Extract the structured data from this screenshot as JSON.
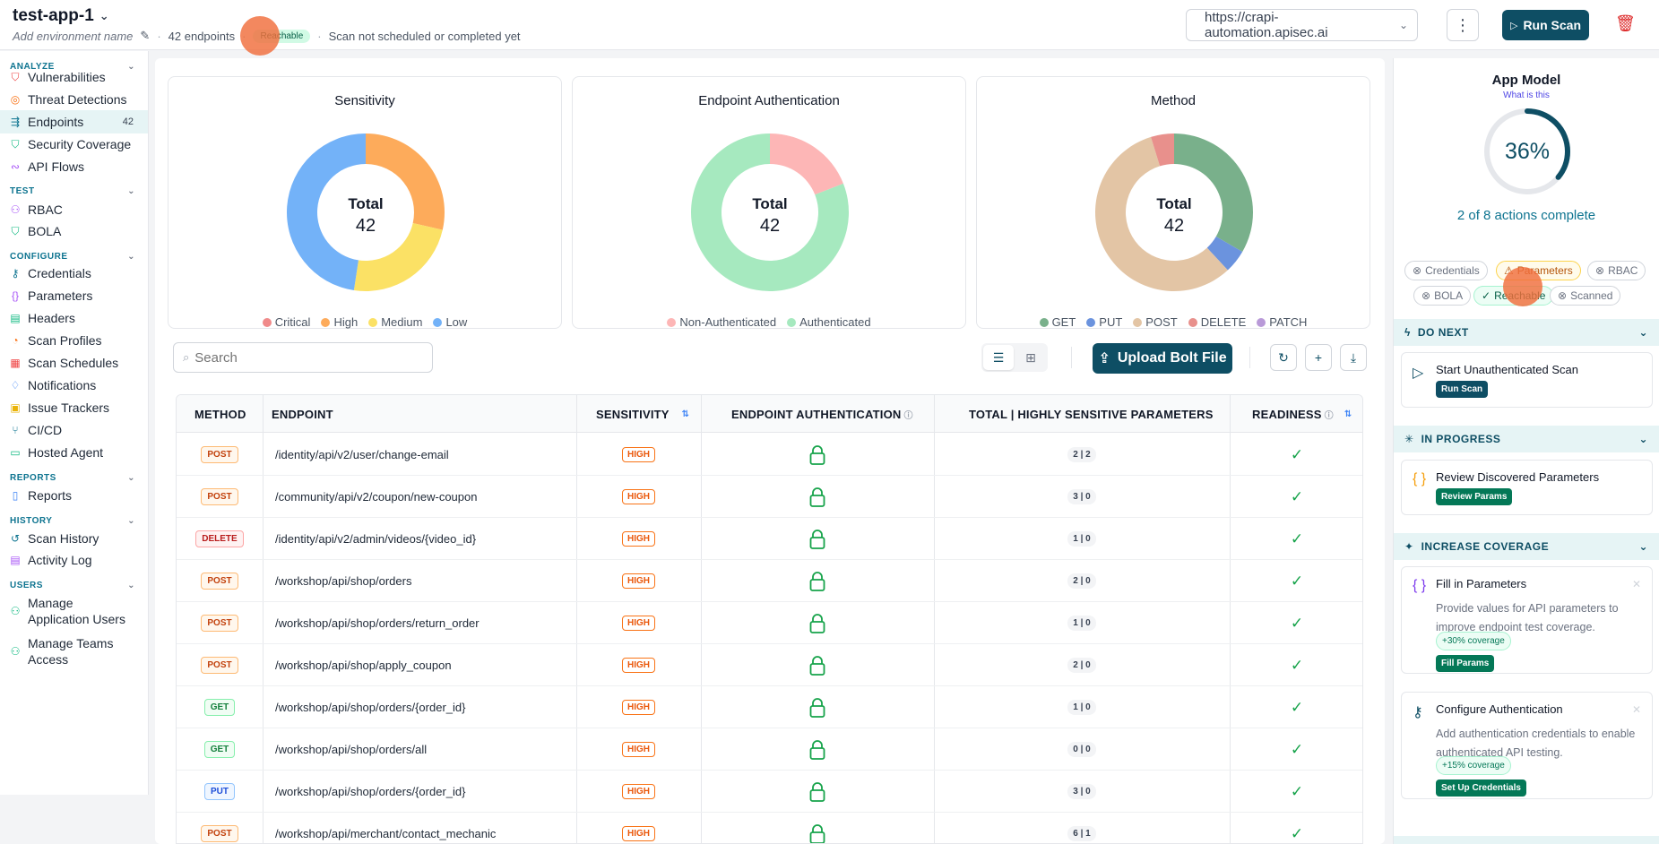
{
  "header": {
    "app_name": "test-app-1",
    "env_placeholder": "Add environment name",
    "endpoints_count": "42 endpoints",
    "reachable_badge": "Reachable",
    "scan_status": "Scan not scheduled or completed yet",
    "url": "https://crapi-automation.apisec.ai",
    "run_scan": "Run Scan"
  },
  "sidebar": {
    "analyze": "ANALYZE",
    "test": "TEST",
    "configure": "CONFIGURE",
    "reports": "REPORTS",
    "history": "HISTORY",
    "users": "USERS",
    "items": {
      "vulnerabilities": "Vulnerabilities",
      "threat_detections": "Threat Detections",
      "endpoints": "Endpoints",
      "endpoints_count": "42",
      "security_coverage": "Security Coverage",
      "api_flows": "API Flows",
      "rbac": "RBAC",
      "bola": "BOLA",
      "credentials": "Credentials",
      "parameters": "Parameters",
      "headers": "Headers",
      "scan_profiles": "Scan Profiles",
      "scan_schedules": "Scan Schedules",
      "notifications": "Notifications",
      "issue_trackers": "Issue Trackers",
      "cicd": "CI/CD",
      "hosted_agent": "Hosted Agent",
      "reports": "Reports",
      "scan_history": "Scan History",
      "activity_log": "Activity Log",
      "manage_app_users_1": "Manage",
      "manage_app_users_2": "Application Users",
      "manage_teams_1": "Manage Teams",
      "manage_teams_2": "Access"
    }
  },
  "chart_data": [
    {
      "type": "pie",
      "title": "Sensitivity",
      "center_label": "Total",
      "center_value": "42",
      "categories": [
        "Critical",
        "High",
        "Medium",
        "Low"
      ],
      "values": [
        0,
        12,
        10,
        20
      ],
      "colors": [
        "#f08a8a",
        "#fdab5b",
        "#fbe165",
        "#73b2f8"
      ]
    },
    {
      "type": "pie",
      "title": "Endpoint Authentication",
      "center_label": "Total",
      "center_value": "42",
      "categories": [
        "Non-Authenticated",
        "Authenticated"
      ],
      "values": [
        8,
        34
      ],
      "colors": [
        "#fdb6b6",
        "#a6e9bf"
      ]
    },
    {
      "type": "pie",
      "title": "Method",
      "center_label": "Total",
      "center_value": "42",
      "categories": [
        "GET",
        "PUT",
        "POST",
        "DELETE",
        "PATCH"
      ],
      "values": [
        14,
        2,
        24,
        2,
        0
      ],
      "colors": [
        "#79b08b",
        "#6b93de",
        "#e3c5a5",
        "#e8908c",
        "#b99ad8"
      ]
    }
  ],
  "toolbar": {
    "search_placeholder": "Search",
    "upload": "Upload Bolt File"
  },
  "table": {
    "headers": {
      "method": "METHOD",
      "endpoint": "ENDPOINT",
      "sensitivity": "SENSITIVITY",
      "auth": "ENDPOINT AUTHENTICATION",
      "params": "TOTAL | HIGHLY SENSITIVE PARAMETERS",
      "readiness": "READINESS"
    },
    "rows": [
      {
        "method": "POST",
        "endpoint": "/identity/api/v2/user/change-email",
        "sensitivity": "HIGH",
        "params": "2 | 2"
      },
      {
        "method": "POST",
        "endpoint": "/community/api/v2/coupon/new-coupon",
        "sensitivity": "HIGH",
        "params": "3 | 0"
      },
      {
        "method": "DELETE",
        "endpoint": "/identity/api/v2/admin/videos/{video_id}",
        "sensitivity": "HIGH",
        "params": "1 | 0"
      },
      {
        "method": "POST",
        "endpoint": "/workshop/api/shop/orders",
        "sensitivity": "HIGH",
        "params": "2 | 0"
      },
      {
        "method": "POST",
        "endpoint": "/workshop/api/shop/orders/return_order",
        "sensitivity": "HIGH",
        "params": "1 | 0"
      },
      {
        "method": "POST",
        "endpoint": "/workshop/api/shop/apply_coupon",
        "sensitivity": "HIGH",
        "params": "2 | 0"
      },
      {
        "method": "GET",
        "endpoint": "/workshop/api/shop/orders/{order_id}",
        "sensitivity": "HIGH",
        "params": "1 | 0"
      },
      {
        "method": "GET",
        "endpoint": "/workshop/api/shop/orders/all",
        "sensitivity": "HIGH",
        "params": "0 | 0"
      },
      {
        "method": "PUT",
        "endpoint": "/workshop/api/shop/orders/{order_id}",
        "sensitivity": "HIGH",
        "params": "3 | 0"
      },
      {
        "method": "POST",
        "endpoint": "/workshop/api/merchant/contact_mechanic",
        "sensitivity": "HIGH",
        "params": "6 | 1"
      }
    ]
  },
  "app_model": {
    "title": "App Model",
    "what": "What is this",
    "percent": "36%",
    "percent_value": 0.36,
    "actions_complete": "2 of 8 actions complete",
    "chips": {
      "credentials": "Credentials",
      "parameters": "Parameters",
      "rbac": "RBAC",
      "bola": "BOLA",
      "reachable": "Reachable",
      "scanned": "Scanned"
    },
    "do_next": "DO NEXT",
    "do_next_task": "Start Unauthenticated Scan",
    "do_next_btn": "Run Scan",
    "in_progress": "IN PROGRESS",
    "in_progress_task": "Review Discovered Parameters",
    "in_progress_btn": "Review Params",
    "increase": "INCREASE COVERAGE",
    "fill_title": "Fill in Parameters",
    "fill_desc": "Provide values for API parameters to improve endpoint test coverage.",
    "fill_cov": "+30% coverage",
    "fill_btn": "Fill Params",
    "auth_title": "Configure Authentication",
    "auth_desc": "Add authentication credentials to enable authenticated API testing.",
    "auth_cov": "+15% coverage",
    "auth_btn": "Set Up Credentials"
  }
}
